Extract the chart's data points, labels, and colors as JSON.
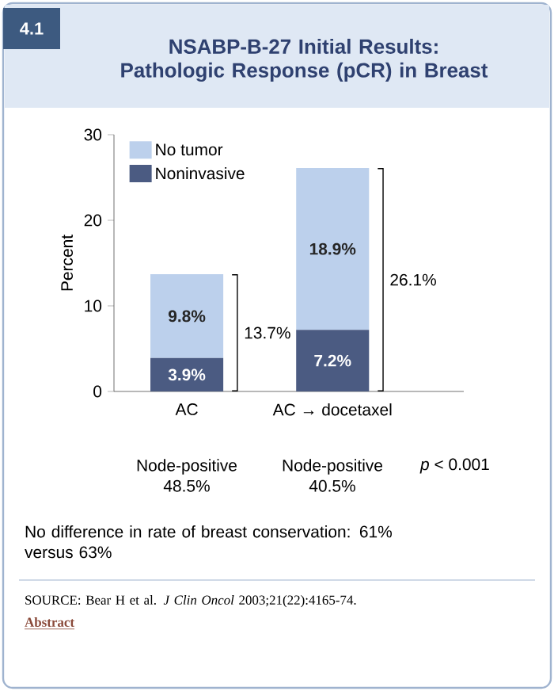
{
  "chart_data": {
    "type": "bar",
    "title": "NSABP-B-27 Initial Results: Pathologic Response (pCR) in Breast",
    "ylabel": "Percent",
    "categories": [
      "AC",
      "AC → docetaxel"
    ],
    "series": [
      {
        "name": "Noninvasive",
        "color": "#4b5b82",
        "values": [
          3.9,
          7.2
        ],
        "value_labels": [
          "3.9%",
          "7.2%"
        ]
      },
      {
        "name": "No tumor",
        "color": "#bcd0ec",
        "values": [
          9.8,
          18.9
        ],
        "value_labels": [
          "9.8%",
          "18.9%"
        ]
      }
    ],
    "stacked": true,
    "ylim": [
      0,
      30
    ],
    "yticks": [
      0,
      10,
      20,
      30
    ],
    "legend": "top left",
    "totals": [
      "13.7%",
      "26.1%"
    ],
    "annotations": [
      "4.1",
      "Node-positive 48.5%",
      "Node-positive 40.5%",
      "*p* < 0.001",
      "No difference in rate of breast conservation: 61% versus 63%",
      "SOURCE: Bear H et al. *J Clin Oncol* 2003;21(22):4165-74.",
      "Abstract"
    ]
  }
}
